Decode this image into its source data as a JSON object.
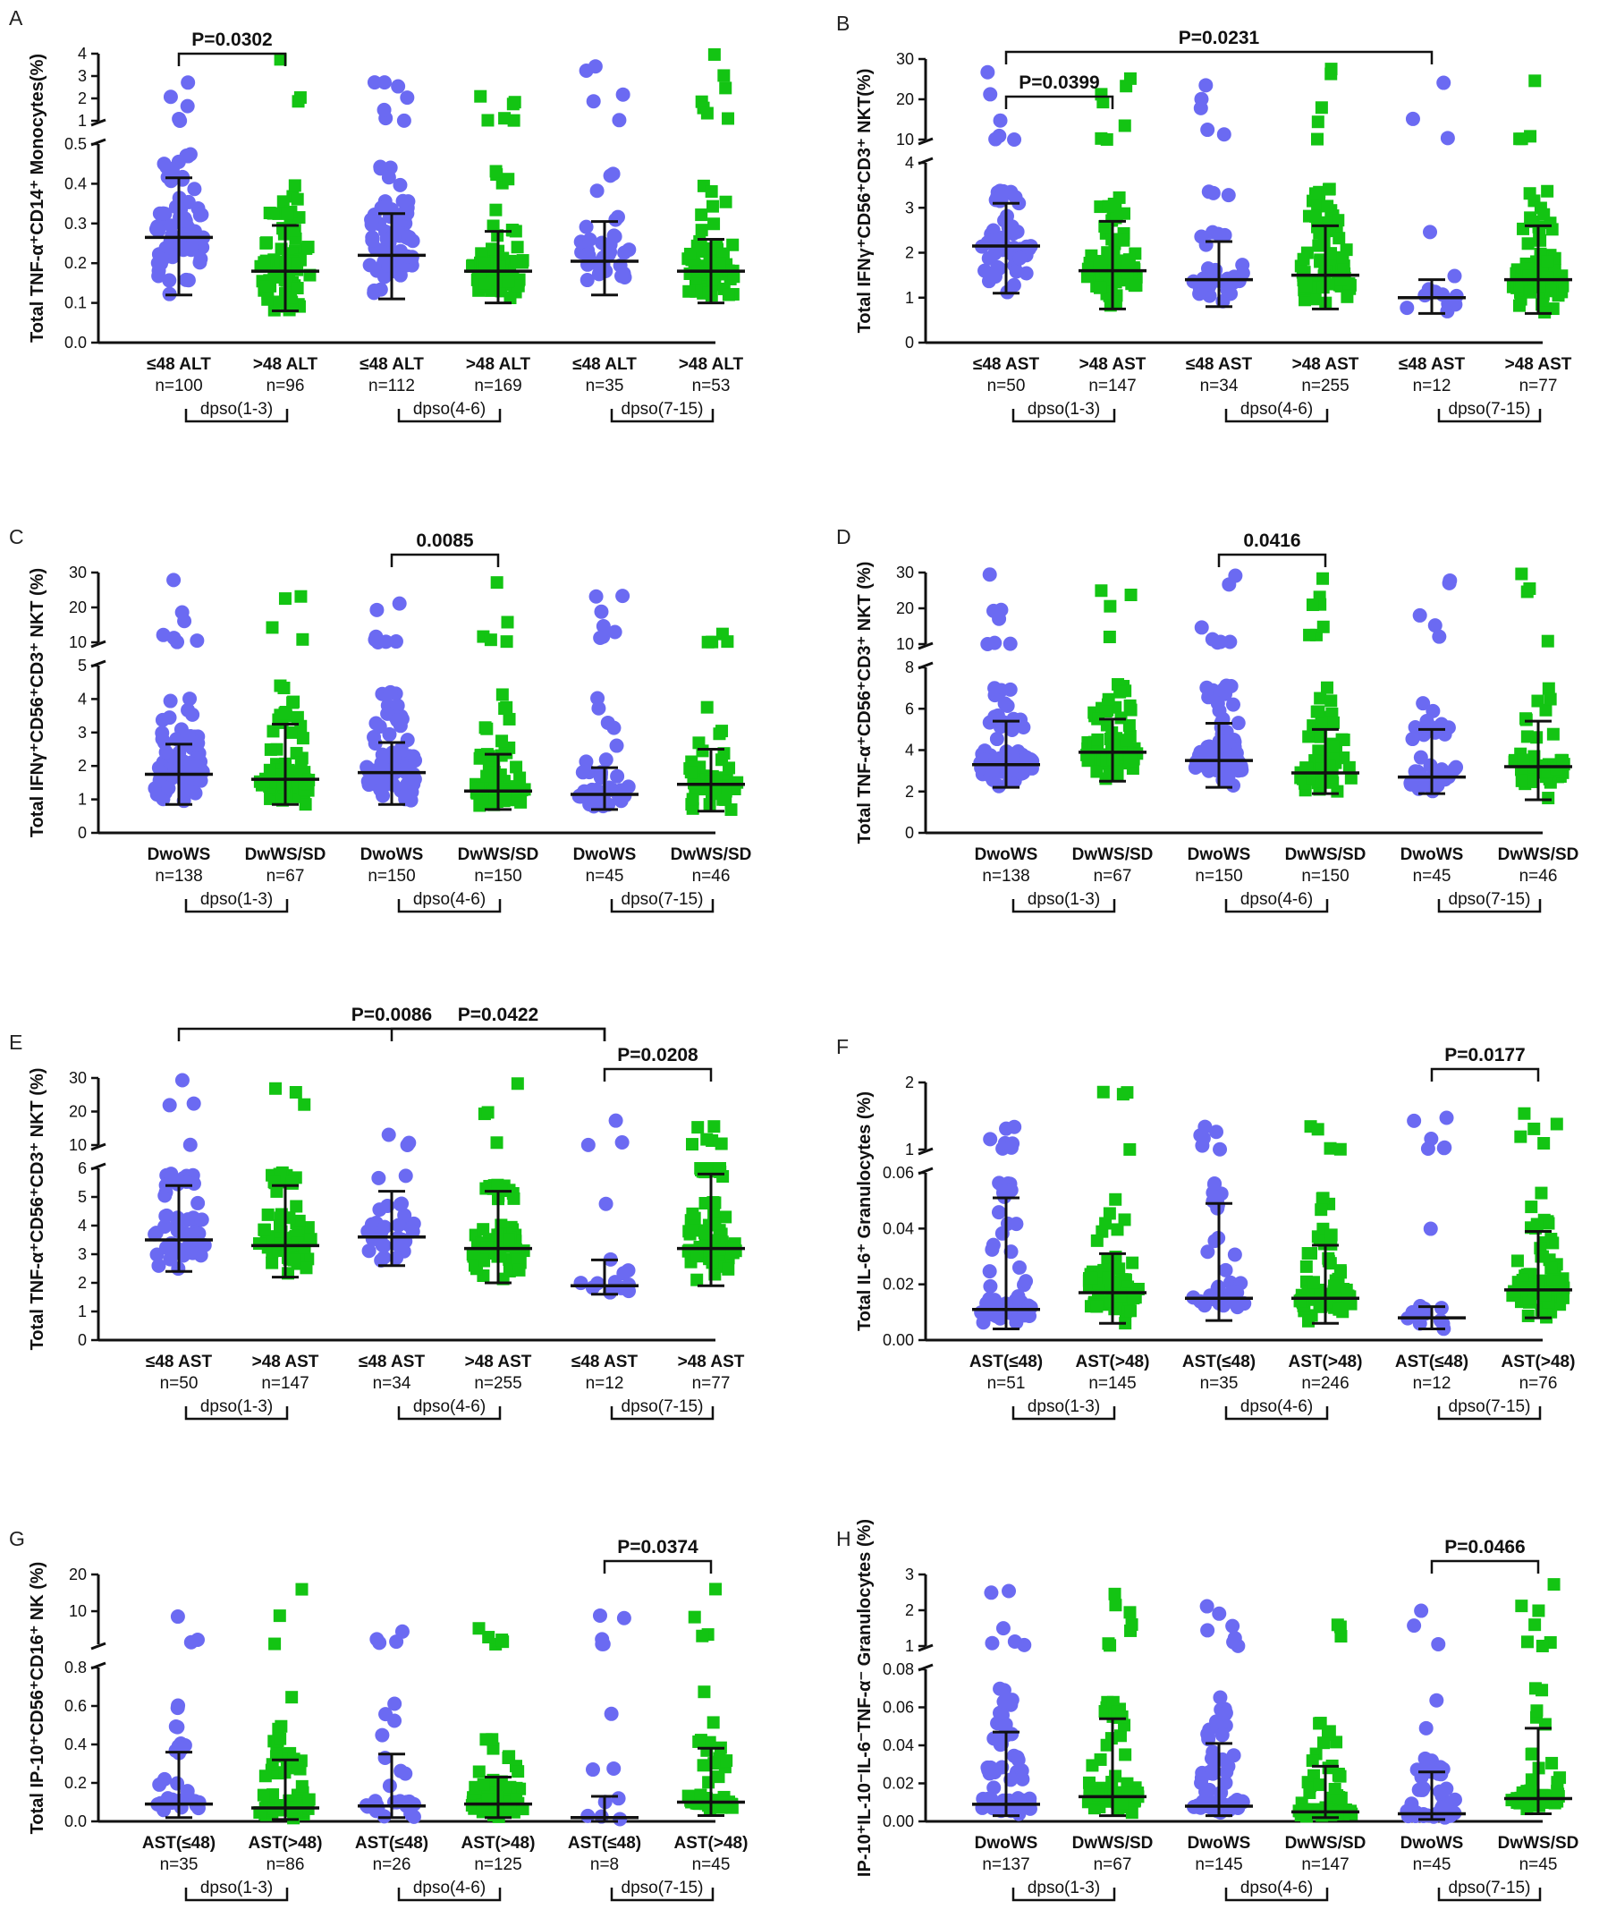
{
  "colors": {
    "low": "#6b6af2",
    "high": "#13c413",
    "axis": "#111111"
  },
  "chart_data": [
    {
      "letter": "A",
      "type": "scatter",
      "ylabel": "Total TNF-α⁺CD14⁺ Monocytes(%)",
      "lower": {
        "ticks": [
          "0.0",
          "0.1",
          "0.2",
          "0.3",
          "0.4",
          "0.5"
        ],
        "range": [
          0,
          0.5
        ]
      },
      "upper": {
        "ticks": [
          "1",
          "2",
          "3",
          "4"
        ],
        "range": [
          1,
          4
        ]
      },
      "categories": [
        {
          "label": "≤48 ALT",
          "n": "n=100",
          "shape": "circle",
          "median": 0.265,
          "q1": 0.12,
          "q3": 0.415
        },
        {
          "label": ">48 ALT",
          "n": "n=96",
          "shape": "square",
          "median": 0.18,
          "q1": 0.08,
          "q3": 0.295
        },
        {
          "label": "≤48 ALT",
          "n": "n=112",
          "shape": "circle",
          "median": 0.22,
          "q1": 0.11,
          "q3": 0.325
        },
        {
          "label": ">48 ALT",
          "n": "n=169",
          "shape": "square",
          "median": 0.18,
          "q1": 0.1,
          "q3": 0.28
        },
        {
          "label": "≤48 ALT",
          "n": "n=35",
          "shape": "circle",
          "median": 0.205,
          "q1": 0.12,
          "q3": 0.305
        },
        {
          "label": ">48 ALT",
          "n": "n=53",
          "shape": "square",
          "median": 0.18,
          "q1": 0.1,
          "q3": 0.26
        }
      ],
      "groups": [
        "dpso(1-3)",
        "dpso(4-6)",
        "dpso(7-15)"
      ],
      "significance": [
        {
          "label": "P=0.0302",
          "from": 0,
          "to": 1
        }
      ]
    },
    {
      "letter": "B",
      "type": "scatter",
      "ylabel": "Total IFNγ⁺CD56⁺CD3⁺ NKT(%)",
      "lower": {
        "ticks": [
          "0",
          "1",
          "2",
          "3",
          "4"
        ],
        "range": [
          0,
          4
        ]
      },
      "upper": {
        "ticks": [
          "10",
          "20",
          "30"
        ],
        "range": [
          10,
          30
        ]
      },
      "categories": [
        {
          "label": "≤48 AST",
          "n": "n=50",
          "shape": "circle",
          "median": 2.15,
          "q1": 1.1,
          "q3": 3.1
        },
        {
          "label": ">48 AST",
          "n": "n=147",
          "shape": "square",
          "median": 1.6,
          "q1": 0.75,
          "q3": 2.7
        },
        {
          "label": "≤48 AST",
          "n": "n=34",
          "shape": "circle",
          "median": 1.4,
          "q1": 0.8,
          "q3": 2.25
        },
        {
          "label": ">48 AST",
          "n": "n=255",
          "shape": "square",
          "median": 1.5,
          "q1": 0.75,
          "q3": 2.6
        },
        {
          "label": "≤48 AST",
          "n": "n=12",
          "shape": "circle",
          "median": 1.0,
          "q1": 0.65,
          "q3": 1.4
        },
        {
          "label": ">48 AST",
          "n": "n=77",
          "shape": "square",
          "median": 1.4,
          "q1": 0.65,
          "q3": 2.6
        }
      ],
      "groups": [
        "dpso(1-3)",
        "dpso(4-6)",
        "dpso(7-15)"
      ],
      "significance": [
        {
          "label": "P=0.0231",
          "from": 0,
          "to": 4
        },
        {
          "label": "P=0.0399",
          "from": 0,
          "to": 1
        }
      ]
    },
    {
      "letter": "C",
      "type": "scatter",
      "ylabel": "Total IFNγ⁺CD56⁺CD3⁺ NKT (%)",
      "lower": {
        "ticks": [
          "0",
          "1",
          "2",
          "3",
          "4",
          "5"
        ],
        "range": [
          0,
          5
        ]
      },
      "upper": {
        "ticks": [
          "10",
          "20",
          "30"
        ],
        "range": [
          10,
          30
        ]
      },
      "categories": [
        {
          "label": "DwoWS",
          "n": "n=138",
          "shape": "circle",
          "median": 1.75,
          "q1": 0.85,
          "q3": 2.65
        },
        {
          "label": "DwWS/SD",
          "n": "n=67",
          "shape": "square",
          "median": 1.6,
          "q1": 0.85,
          "q3": 3.25
        },
        {
          "label": "DwoWS",
          "n": "n=150",
          "shape": "circle",
          "median": 1.8,
          "q1": 0.85,
          "q3": 2.7
        },
        {
          "label": "DwWS/SD",
          "n": "n=150",
          "shape": "square",
          "median": 1.25,
          "q1": 0.7,
          "q3": 2.35
        },
        {
          "label": "DwoWS",
          "n": "n=45",
          "shape": "circle",
          "median": 1.15,
          "q1": 0.7,
          "q3": 1.95
        },
        {
          "label": "DwWS/SD",
          "n": "n=46",
          "shape": "square",
          "median": 1.45,
          "q1": 0.65,
          "q3": 2.5
        }
      ],
      "groups": [
        "dpso(1-3)",
        "dpso(4-6)",
        "dpso(7-15)"
      ],
      "significance": [
        {
          "label": "0.0085",
          "from": 2,
          "to": 3
        }
      ]
    },
    {
      "letter": "D",
      "type": "scatter",
      "ylabel": "Total TNF-α⁺CD56⁺CD3⁺ NKT (%)",
      "lower": {
        "ticks": [
          "0",
          "2",
          "4",
          "6",
          "8"
        ],
        "range": [
          0,
          8
        ]
      },
      "upper": {
        "ticks": [
          "10",
          "20",
          "30"
        ],
        "range": [
          10,
          30
        ]
      },
      "categories": [
        {
          "label": "DwoWS",
          "n": "n=138",
          "shape": "circle",
          "median": 3.3,
          "q1": 2.2,
          "q3": 5.4
        },
        {
          "label": "DwWS/SD",
          "n": "n=67",
          "shape": "square",
          "median": 3.9,
          "q1": 2.5,
          "q3": 5.5
        },
        {
          "label": "DwoWS",
          "n": "n=150",
          "shape": "circle",
          "median": 3.5,
          "q1": 2.2,
          "q3": 5.3
        },
        {
          "label": "DwWS/SD",
          "n": "n=150",
          "shape": "square",
          "median": 2.9,
          "q1": 1.9,
          "q3": 5.0
        },
        {
          "label": "DwoWS",
          "n": "n=45",
          "shape": "circle",
          "median": 2.7,
          "q1": 1.9,
          "q3": 5.0
        },
        {
          "label": "DwWS/SD",
          "n": "n=46",
          "shape": "square",
          "median": 3.2,
          "q1": 1.6,
          "q3": 5.4
        }
      ],
      "groups": [
        "dpso(1-3)",
        "dpso(4-6)",
        "dpso(7-15)"
      ],
      "significance": [
        {
          "label": "0.0416",
          "from": 2,
          "to": 3
        }
      ]
    },
    {
      "letter": "E",
      "type": "scatter",
      "ylabel": "Total TNF-α⁺CD56⁺CD3⁺ NKT (%)",
      "lower": {
        "ticks": [
          "0",
          "1",
          "2",
          "3",
          "4",
          "5",
          "6"
        ],
        "range": [
          0,
          6
        ]
      },
      "upper": {
        "ticks": [
          "10",
          "20",
          "30"
        ],
        "range": [
          10,
          30
        ]
      },
      "categories": [
        {
          "label": "≤48 AST",
          "n": "n=50",
          "shape": "circle",
          "median": 3.5,
          "q1": 2.4,
          "q3": 5.4
        },
        {
          "label": ">48 AST",
          "n": "n=147",
          "shape": "square",
          "median": 3.3,
          "q1": 2.2,
          "q3": 5.4
        },
        {
          "label": "≤48 AST",
          "n": "n=34",
          "shape": "circle",
          "median": 3.6,
          "q1": 2.6,
          "q3": 5.2
        },
        {
          "label": ">48 AST",
          "n": "n=255",
          "shape": "square",
          "median": 3.2,
          "q1": 2.0,
          "q3": 5.2
        },
        {
          "label": "≤48 AST",
          "n": "n=12",
          "shape": "circle",
          "median": 1.9,
          "q1": 1.6,
          "q3": 2.8
        },
        {
          "label": ">48 AST",
          "n": "n=77",
          "shape": "square",
          "median": 3.2,
          "q1": 1.9,
          "q3": 5.8
        }
      ],
      "groups": [
        "dpso(1-3)",
        "dpso(4-6)",
        "dpso(7-15)"
      ],
      "significance": [
        {
          "label": "P=0.0086",
          "from": 0,
          "to": 4
        },
        {
          "label": "P=0.0208",
          "from": 4,
          "to": 5
        },
        {
          "label": "P=0.0422",
          "from": 2,
          "to": 4
        }
      ]
    },
    {
      "letter": "F",
      "type": "scatter",
      "ylabel": "Total IL-6⁺ Granulocytes (%)",
      "lower": {
        "ticks": [
          "0.00",
          "0.02",
          "0.04",
          "0.06"
        ],
        "range": [
          0,
          0.06
        ]
      },
      "upper": {
        "ticks": [
          "1",
          "2"
        ],
        "range": [
          1,
          2
        ]
      },
      "categories": [
        {
          "label": "AST(≤48)",
          "n": "n=51",
          "shape": "circle",
          "median": 0.011,
          "q1": 0.004,
          "q3": 0.051
        },
        {
          "label": "AST(>48)",
          "n": "n=145",
          "shape": "square",
          "median": 0.017,
          "q1": 0.006,
          "q3": 0.031
        },
        {
          "label": "AST(≤48)",
          "n": "n=35",
          "shape": "circle",
          "median": 0.015,
          "q1": 0.007,
          "q3": 0.049
        },
        {
          "label": "AST(>48)",
          "n": "n=246",
          "shape": "square",
          "median": 0.015,
          "q1": 0.006,
          "q3": 0.034
        },
        {
          "label": "AST(≤48)",
          "n": "n=12",
          "shape": "circle",
          "median": 0.008,
          "q1": 0.004,
          "q3": 0.012
        },
        {
          "label": "AST(>48)",
          "n": "n=76",
          "shape": "square",
          "median": 0.018,
          "q1": 0.008,
          "q3": 0.039
        }
      ],
      "groups": [
        "dpso(1-3)",
        "dpso(4-6)",
        "dpso(7-15)"
      ],
      "significance": [
        {
          "label": "P=0.0177",
          "from": 4,
          "to": 5
        }
      ]
    },
    {
      "letter": "G",
      "type": "scatter",
      "ylabel": "Total IP-10⁺CD56⁺CD16⁺ NK (%)",
      "lower": {
        "ticks": [
          "0.0",
          "0.2",
          "0.4",
          "0.6",
          "0.8"
        ],
        "range": [
          0,
          0.8
        ]
      },
      "upper": {
        "ticks": [
          "10",
          "20"
        ],
        "range": [
          1,
          20
        ]
      },
      "categories": [
        {
          "label": "AST(≤48)",
          "n": "n=35",
          "shape": "circle",
          "median": 0.09,
          "q1": 0.02,
          "q3": 0.36
        },
        {
          "label": "AST(>48)",
          "n": "n=86",
          "shape": "square",
          "median": 0.07,
          "q1": 0.01,
          "q3": 0.32
        },
        {
          "label": "AST(≤48)",
          "n": "n=26",
          "shape": "circle",
          "median": 0.08,
          "q1": 0.02,
          "q3": 0.35
        },
        {
          "label": "AST(>48)",
          "n": "n=125",
          "shape": "square",
          "median": 0.09,
          "q1": 0.02,
          "q3": 0.23
        },
        {
          "label": "AST(≤48)",
          "n": "n=8",
          "shape": "circle",
          "median": 0.02,
          "q1": 0.0,
          "q3": 0.13
        },
        {
          "label": "AST(>48)",
          "n": "n=45",
          "shape": "square",
          "median": 0.1,
          "q1": 0.03,
          "q3": 0.38
        }
      ],
      "groups": [
        "dpso(1-3)",
        "dpso(4-6)",
        "dpso(7-15)"
      ],
      "significance": [
        {
          "label": "P=0.0374",
          "from": 4,
          "to": 5
        }
      ]
    },
    {
      "letter": "H",
      "type": "scatter",
      "ylabel": "IP-10⁺IL-10⁻IL-6⁻TNF-α⁻ Granulocytes (%)",
      "lower": {
        "ticks": [
          "0.00",
          "0.02",
          "0.04",
          "0.06",
          "0.08"
        ],
        "range": [
          0,
          0.08
        ]
      },
      "upper": {
        "ticks": [
          "1",
          "2",
          "3"
        ],
        "range": [
          1,
          3
        ]
      },
      "categories": [
        {
          "label": "DwoWS",
          "n": "n=137",
          "shape": "circle",
          "median": 0.009,
          "q1": 0.003,
          "q3": 0.047
        },
        {
          "label": "DwWS/SD",
          "n": "n=67",
          "shape": "square",
          "median": 0.013,
          "q1": 0.003,
          "q3": 0.054
        },
        {
          "label": "DwoWS",
          "n": "n=145",
          "shape": "circle",
          "median": 0.008,
          "q1": 0.003,
          "q3": 0.041
        },
        {
          "label": "DwWS/SD",
          "n": "n=147",
          "shape": "square",
          "median": 0.005,
          "q1": 0.002,
          "q3": 0.029
        },
        {
          "label": "DwoWS",
          "n": "n=45",
          "shape": "circle",
          "median": 0.004,
          "q1": 0.001,
          "q3": 0.026
        },
        {
          "label": "DwWS/SD",
          "n": "n=45",
          "shape": "square",
          "median": 0.012,
          "q1": 0.004,
          "q3": 0.049
        }
      ],
      "groups": [
        "dpso(1-3)",
        "dpso(4-6)",
        "dpso(7-15)"
      ],
      "significance": [
        {
          "label": "P=0.0466",
          "from": 4,
          "to": 5
        }
      ]
    }
  ]
}
